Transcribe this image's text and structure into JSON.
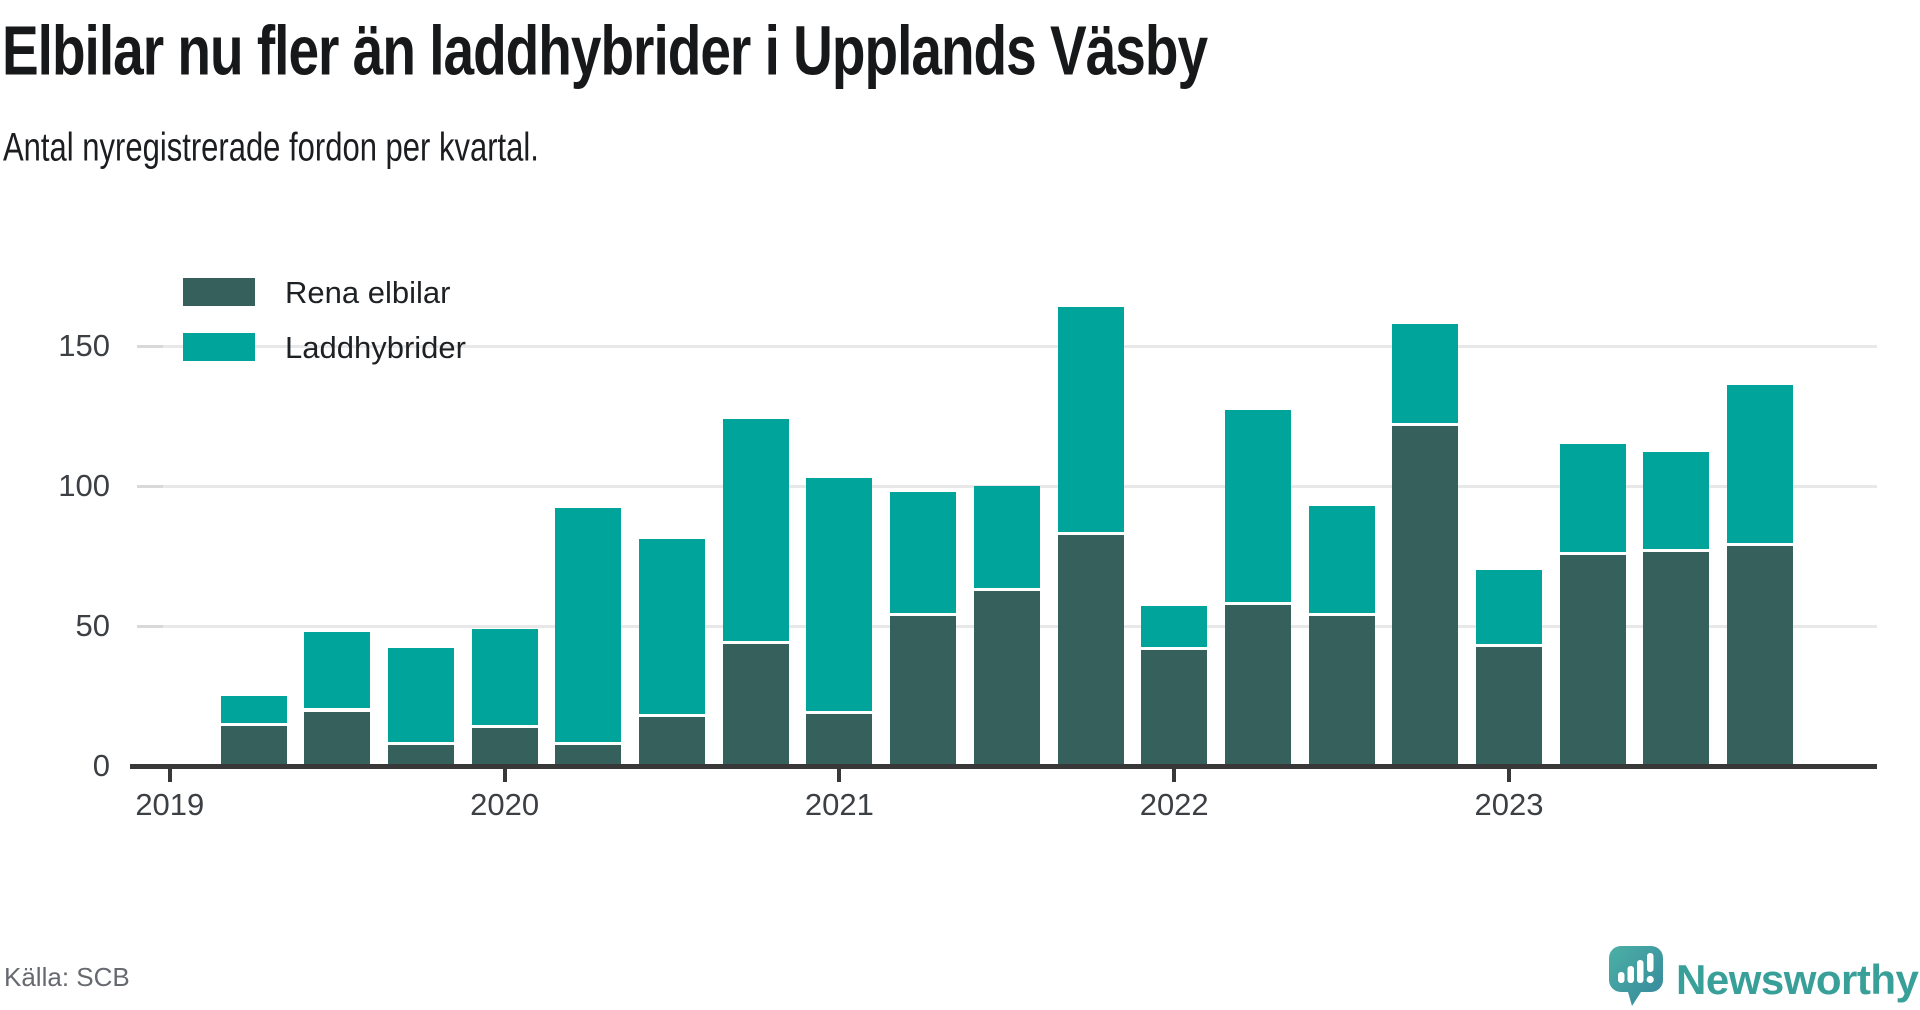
{
  "header": {
    "title": "Elbilar nu fler än laddhybrider i Upplands Väsby",
    "subtitle": "Antal nyregistrerade fordon per kvartal."
  },
  "chart_data": {
    "type": "bar",
    "stacked": true,
    "title": "Elbilar nu fler än laddhybrider i Upplands Väsby",
    "subtitle": "Antal nyregistrerade fordon per kvartal.",
    "categories": [
      "2019 K2",
      "2019 K3",
      "2019 K4",
      "2020 K1",
      "2020 K2",
      "2020 K3",
      "2020 K4",
      "2021 K1",
      "2021 K2",
      "2021 K3",
      "2021 K4",
      "2022 K1",
      "2022 K2",
      "2022 K3",
      "2022 K4",
      "2023 K1",
      "2023 K2",
      "2023 K3",
      "2023 K4"
    ],
    "series": [
      {
        "name": "Rena elbilar",
        "color": "#35605b",
        "values": [
          15,
          20,
          8,
          14,
          8,
          18,
          44,
          19,
          54,
          63,
          83,
          42,
          58,
          54,
          122,
          43,
          76,
          77,
          79
        ]
      },
      {
        "name": "Laddhybrider",
        "color": "#00a49b",
        "values": [
          10,
          28,
          34,
          35,
          84,
          63,
          80,
          84,
          44,
          37,
          81,
          15,
          69,
          39,
          36,
          27,
          39,
          35,
          57
        ]
      }
    ],
    "totals": [
      25,
      48,
      42,
      49,
      92,
      81,
      124,
      103,
      98,
      100,
      164,
      57,
      127,
      93,
      158,
      70,
      115,
      112,
      136
    ],
    "xlabel": "",
    "ylabel": "",
    "yticks": [
      0,
      50,
      100,
      150
    ],
    "xticks": [
      "2019",
      "2020",
      "2021",
      "2022",
      "2023"
    ],
    "ylim": [
      0,
      170
    ],
    "grid": true,
    "legend_position": "top-left"
  },
  "footer": {
    "source": "Källa: SCB",
    "brand": "Newsworthy"
  },
  "colors": {
    "elbilar": "#35605b",
    "laddhybrider": "#00a49b",
    "axis": "#383838",
    "gridline": "#e8e8e8",
    "tick_dash": "#d9d9d9",
    "text": "#16181a",
    "muted_text": "#66696f",
    "brand_teal": "#38a099"
  }
}
